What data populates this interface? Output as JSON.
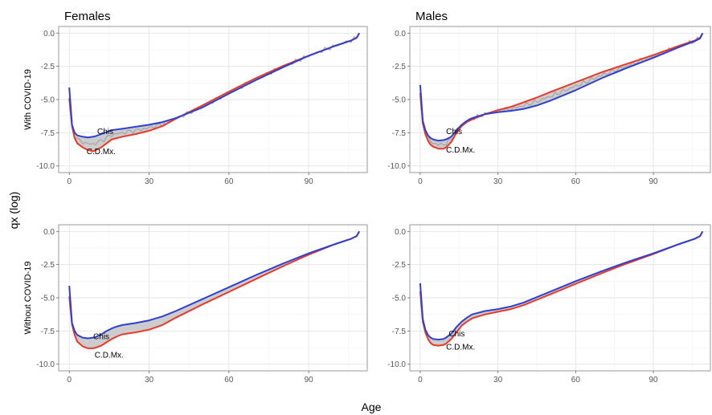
{
  "figure": {
    "y_label": "qx (log)",
    "x_label": "Age"
  },
  "colors": {
    "red_series": "#e8392b",
    "blue_series": "#2f3fd0",
    "gray_series": "#9e9e9e",
    "band_fill": "#c9c9c9"
  },
  "chart_data": [
    {
      "type": "line",
      "column_title": "Females",
      "row_title": "With COVID-19",
      "xlim": [
        -4,
        112
      ],
      "ylim": [
        -10.5,
        0.5
      ],
      "xticks": [
        0,
        30,
        60,
        90
      ],
      "yticks": [
        0.0,
        -2.5,
        -5.0,
        -7.5,
        -10.0
      ],
      "ytick_labels": [
        "0.0",
        "-2.5",
        "-5.0",
        "-7.5",
        "-10.0"
      ],
      "grid": true,
      "shaded_band_between_series": true,
      "gray_noisy_series": true,
      "annotations": [
        {
          "text": "Chis",
          "x": 10.5,
          "y": -7.6
        },
        {
          "text": "C.D.Mx.",
          "x": 6.5,
          "y": -9.1
        }
      ],
      "series": [
        {
          "color": "red",
          "x": [
            0,
            1,
            2,
            3,
            5,
            7,
            9,
            10,
            12,
            14,
            16,
            20,
            25,
            30,
            35,
            40,
            50,
            60,
            70,
            80,
            90,
            100,
            106,
            108,
            109
          ],
          "y": [
            -4.9,
            -7.0,
            -7.9,
            -8.3,
            -8.6,
            -8.8,
            -8.9,
            -8.8,
            -8.6,
            -8.3,
            -8.0,
            -7.8,
            -7.6,
            -7.35,
            -7.0,
            -6.45,
            -5.45,
            -4.4,
            -3.4,
            -2.5,
            -1.7,
            -0.95,
            -0.55,
            -0.35,
            0.0
          ]
        },
        {
          "color": "blue",
          "x": [
            0,
            1,
            2,
            3,
            5,
            7,
            9,
            10,
            12,
            14,
            16,
            20,
            25,
            30,
            35,
            40,
            50,
            60,
            70,
            80,
            90,
            100,
            106,
            108,
            109
          ],
          "y": [
            -4.1,
            -6.9,
            -7.5,
            -7.7,
            -7.8,
            -7.85,
            -7.8,
            -7.75,
            -7.6,
            -7.45,
            -7.3,
            -7.2,
            -7.05,
            -6.9,
            -6.7,
            -6.4,
            -5.6,
            -4.55,
            -3.55,
            -2.6,
            -1.7,
            -0.95,
            -0.55,
            -0.35,
            0.0
          ]
        }
      ]
    },
    {
      "type": "line",
      "column_title": "Males",
      "row_title": "With COVID-19",
      "xlim": [
        -4,
        112
      ],
      "ylim": [
        -10.5,
        0.5
      ],
      "xticks": [
        0,
        30,
        60,
        90
      ],
      "yticks": [
        0.0,
        -2.5,
        -5.0,
        -7.5,
        -10.0
      ],
      "ytick_labels": [
        "0.0",
        "-2.5",
        "-5.0",
        "-7.5",
        "-10.0"
      ],
      "grid": true,
      "shaded_band_between_series": true,
      "gray_noisy_series": true,
      "annotations": [
        {
          "text": "Chis",
          "x": 10,
          "y": -7.6
        },
        {
          "text": "C.D.Mx.",
          "x": 10,
          "y": -9.0
        }
      ],
      "series": [
        {
          "color": "red",
          "x": [
            0,
            1,
            2,
            3,
            4,
            5,
            7,
            9,
            10,
            12,
            14,
            16,
            18,
            20,
            25,
            30,
            35,
            40,
            45,
            50,
            60,
            70,
            80,
            90,
            100,
            106,
            108,
            109
          ],
          "y": [
            -4.5,
            -6.8,
            -7.6,
            -8.1,
            -8.4,
            -8.55,
            -8.7,
            -8.7,
            -8.6,
            -8.2,
            -7.5,
            -7.0,
            -6.7,
            -6.5,
            -6.1,
            -5.8,
            -5.55,
            -5.2,
            -4.85,
            -4.45,
            -3.7,
            -2.95,
            -2.3,
            -1.65,
            -0.95,
            -0.55,
            -0.35,
            0.0
          ]
        },
        {
          "color": "blue",
          "x": [
            0,
            1,
            2,
            3,
            4,
            5,
            7,
            9,
            10,
            12,
            14,
            16,
            18,
            20,
            25,
            30,
            35,
            40,
            45,
            50,
            60,
            70,
            80,
            90,
            100,
            106,
            108,
            109
          ],
          "y": [
            -3.9,
            -6.6,
            -7.3,
            -7.7,
            -7.9,
            -8.0,
            -8.1,
            -8.05,
            -8.0,
            -7.8,
            -7.3,
            -6.9,
            -6.6,
            -6.4,
            -6.1,
            -5.95,
            -5.85,
            -5.7,
            -5.45,
            -5.1,
            -4.3,
            -3.4,
            -2.6,
            -1.85,
            -1.05,
            -0.6,
            -0.4,
            0.0
          ]
        }
      ]
    },
    {
      "type": "line",
      "column_title": "Females",
      "row_title": "Without COVID-19",
      "xlim": [
        -4,
        112
      ],
      "ylim": [
        -10.5,
        0.5
      ],
      "xticks": [
        0,
        30,
        60,
        90
      ],
      "yticks": [
        0.0,
        -2.5,
        -5.0,
        -7.5,
        -10.0
      ],
      "ytick_labels": [
        "0.0",
        "-2.5",
        "-5.0",
        "-7.5",
        "-10.0"
      ],
      "grid": true,
      "shaded_band_between_series": true,
      "gray_noisy_series": false,
      "annotations": [
        {
          "text": "Chis",
          "x": 9,
          "y": -8.1
        },
        {
          "text": "C.D.Mx.",
          "x": 9.5,
          "y": -9.5
        }
      ],
      "series": [
        {
          "color": "red",
          "x": [
            0,
            1,
            2,
            3,
            5,
            7,
            9,
            10,
            12,
            14,
            16,
            18,
            20,
            25,
            30,
            35,
            40,
            50,
            60,
            70,
            80,
            90,
            100,
            106,
            108,
            109
          ],
          "y": [
            -4.9,
            -7.0,
            -7.8,
            -8.3,
            -8.65,
            -8.8,
            -8.8,
            -8.75,
            -8.6,
            -8.35,
            -8.1,
            -7.9,
            -7.75,
            -7.6,
            -7.4,
            -7.05,
            -6.5,
            -5.5,
            -4.55,
            -3.6,
            -2.65,
            -1.75,
            -0.95,
            -0.55,
            -0.35,
            0.0
          ]
        },
        {
          "color": "blue",
          "x": [
            0,
            1,
            2,
            3,
            5,
            7,
            9,
            10,
            12,
            14,
            16,
            18,
            20,
            25,
            30,
            35,
            40,
            50,
            60,
            70,
            80,
            90,
            100,
            106,
            108,
            109
          ],
          "y": [
            -4.1,
            -6.9,
            -7.5,
            -7.8,
            -8.0,
            -8.05,
            -8.0,
            -7.95,
            -7.75,
            -7.5,
            -7.3,
            -7.15,
            -7.05,
            -6.9,
            -6.7,
            -6.4,
            -6.0,
            -5.1,
            -4.2,
            -3.3,
            -2.45,
            -1.65,
            -0.95,
            -0.55,
            -0.35,
            0.0
          ]
        }
      ]
    },
    {
      "type": "line",
      "column_title": "Males",
      "row_title": "Without COVID-19",
      "xlim": [
        -4,
        112
      ],
      "ylim": [
        -10.5,
        0.5
      ],
      "xticks": [
        0,
        30,
        60,
        90
      ],
      "yticks": [
        0.0,
        -2.5,
        -5.0,
        -7.5,
        -10.0
      ],
      "ytick_labels": [
        "0.0",
        "-2.5",
        "-5.0",
        "-7.5",
        "-10.0"
      ],
      "grid": true,
      "shaded_band_between_series": true,
      "gray_noisy_series": false,
      "annotations": [
        {
          "text": "Chis",
          "x": 11,
          "y": -7.9
        },
        {
          "text": "C.D.Mx.",
          "x": 10,
          "y": -8.9
        }
      ],
      "series": [
        {
          "color": "red",
          "x": [
            0,
            1,
            2,
            3,
            4,
            5,
            7,
            9,
            10,
            12,
            14,
            16,
            18,
            20,
            25,
            30,
            35,
            40,
            45,
            50,
            60,
            70,
            80,
            90,
            100,
            106,
            108,
            109
          ],
          "y": [
            -4.5,
            -6.8,
            -7.6,
            -8.1,
            -8.4,
            -8.55,
            -8.6,
            -8.55,
            -8.45,
            -8.1,
            -7.6,
            -7.1,
            -6.8,
            -6.55,
            -6.25,
            -6.05,
            -5.85,
            -5.55,
            -5.15,
            -4.75,
            -3.95,
            -3.15,
            -2.4,
            -1.7,
            -0.95,
            -0.55,
            -0.35,
            0.0
          ]
        },
        {
          "color": "blue",
          "x": [
            0,
            1,
            2,
            3,
            4,
            5,
            7,
            9,
            10,
            12,
            14,
            16,
            18,
            20,
            25,
            30,
            35,
            40,
            45,
            50,
            60,
            70,
            80,
            90,
            100,
            106,
            108,
            109
          ],
          "y": [
            -3.9,
            -6.6,
            -7.4,
            -7.8,
            -8.0,
            -8.1,
            -8.15,
            -8.1,
            -8.0,
            -7.7,
            -7.2,
            -6.8,
            -6.5,
            -6.25,
            -6.0,
            -5.85,
            -5.65,
            -5.35,
            -4.95,
            -4.55,
            -3.75,
            -3.0,
            -2.3,
            -1.65,
            -0.95,
            -0.55,
            -0.35,
            0.0
          ]
        }
      ]
    }
  ]
}
